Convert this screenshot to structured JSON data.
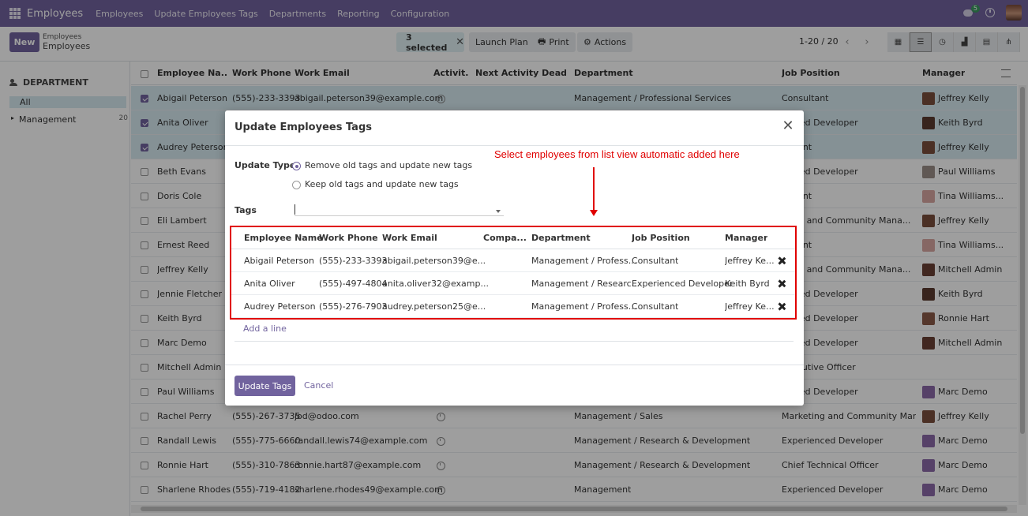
{
  "topbar": {
    "brand": "Employees",
    "menu": [
      "Employees",
      "Update Employees Tags",
      "Departments",
      "Reporting",
      "Configuration"
    ],
    "chat_count": "5"
  },
  "control_panel": {
    "new_label": "New",
    "breadcrumb_parent": "Employees",
    "breadcrumb_current": "Employees",
    "selected_label": "3 selected",
    "launch_plan_label": "Launch Plan",
    "print_label": "Print",
    "actions_label": "Actions",
    "pager": "1-20 / 20"
  },
  "sidebar": {
    "title": "DEPARTMENT",
    "all_label": "All",
    "items": [
      {
        "label": "Management",
        "count": "20"
      }
    ]
  },
  "list": {
    "headers": [
      "Employee Na...",
      "Work Phone",
      "Work Email",
      "Activit...",
      "Next Activity Deadli...",
      "Department",
      "Job Position",
      "Manager"
    ],
    "rows": [
      {
        "name": "Abigail Peterson",
        "phone": "(555)-233-3393",
        "email": "abigail.peterson39@example.com",
        "activity": true,
        "department": "Management / Professional Services",
        "job": "Consultant",
        "manager": "Jeffrey Kelly",
        "selected": true,
        "av": "#7a4e3c"
      },
      {
        "name": "Anita Oliver",
        "phone": "",
        "email": "",
        "activity": false,
        "department": "",
        "job": "ienced Developer",
        "manager": "Keith Byrd",
        "selected": true,
        "av": "#5b3b30"
      },
      {
        "name": "Audrey Peterson",
        "phone": "",
        "email": "",
        "activity": false,
        "department": "",
        "job": "sultant",
        "manager": "Jeffrey Kelly",
        "selected": true,
        "av": "#7a4e3c"
      },
      {
        "name": "Beth Evans",
        "phone": "",
        "email": "",
        "activity": false,
        "department": "",
        "job": "ienced Developer",
        "manager": "Paul Williams",
        "selected": false,
        "av": "#9b8f88"
      },
      {
        "name": "Doris Cole",
        "phone": "",
        "email": "",
        "activity": false,
        "department": "",
        "job": "sultant",
        "manager": "Tina Williams...",
        "selected": false,
        "av": "#d8a7a2"
      },
      {
        "name": "Eli Lambert",
        "phone": "",
        "email": "",
        "activity": false,
        "department": "",
        "job": "eting and Community Mana...",
        "manager": "Jeffrey Kelly",
        "selected": false,
        "av": "#7a4e3c"
      },
      {
        "name": "Ernest Reed",
        "phone": "",
        "email": "",
        "activity": false,
        "department": "",
        "job": "sultant",
        "manager": "Tina Williams...",
        "selected": false,
        "av": "#d8a7a2"
      },
      {
        "name": "Jeffrey Kelly",
        "phone": "",
        "email": "",
        "activity": false,
        "department": "",
        "job": "eting and Community Mana...",
        "manager": "Mitchell Admin",
        "selected": false,
        "av": "#6a3f35"
      },
      {
        "name": "Jennie Fletcher",
        "phone": "",
        "email": "",
        "activity": false,
        "department": "",
        "job": "ienced Developer",
        "manager": "Keith Byrd",
        "selected": false,
        "av": "#5b3b30"
      },
      {
        "name": "Keith Byrd",
        "phone": "",
        "email": "",
        "activity": false,
        "department": "",
        "job": "ienced Developer",
        "manager": "Ronnie Hart",
        "selected": false,
        "av": "#8a5a47"
      },
      {
        "name": "Marc Demo",
        "phone": "",
        "email": "",
        "activity": false,
        "department": "",
        "job": "ienced Developer",
        "manager": "Mitchell Admin",
        "selected": false,
        "av": "#6a3f35"
      },
      {
        "name": "Mitchell Admin",
        "phone": "",
        "email": "",
        "activity": false,
        "department": "",
        "job": "Executive Officer",
        "manager": "",
        "selected": false,
        "av": ""
      },
      {
        "name": "Paul Williams",
        "phone": "",
        "email": "",
        "activity": false,
        "department": "",
        "job": "ienced Developer",
        "manager": "Marc Demo",
        "selected": false,
        "av": "#8b6aa8"
      },
      {
        "name": "Rachel Perry",
        "phone": "(555)-267-3735",
        "email": "jod@odoo.com",
        "activity": true,
        "department": "Management / Sales",
        "job": "Marketing and Community Mana...",
        "manager": "Jeffrey Kelly",
        "selected": false,
        "av": "#7a4e3c"
      },
      {
        "name": "Randall Lewis",
        "phone": "(555)-775-6660",
        "email": "randall.lewis74@example.com",
        "activity": true,
        "department": "Management / Research & Development",
        "job": "Experienced Developer",
        "manager": "Marc Demo",
        "selected": false,
        "av": "#8b6aa8"
      },
      {
        "name": "Ronnie Hart",
        "phone": "(555)-310-7863",
        "email": "ronnie.hart87@example.com",
        "activity": true,
        "department": "Management / Research & Development",
        "job": "Chief Technical Officer",
        "manager": "Marc Demo",
        "selected": false,
        "av": "#8b6aa8"
      },
      {
        "name": "Sharlene Rhodes",
        "phone": "(555)-719-4182",
        "email": "sharlene.rhodes49@example.com",
        "activity": true,
        "department": "Management",
        "job": "Experienced Developer",
        "manager": "Marc Demo",
        "selected": false,
        "av": "#8b6aa8"
      }
    ]
  },
  "modal": {
    "title": "Update Employees Tags",
    "note": "Select employees from list view automatic added here",
    "update_type_label": "Update Type",
    "option_remove": "Remove old tags and update new tags",
    "option_keep": "Keep old tags and update new tags",
    "tags_label": "Tags",
    "sub_headers": [
      "Employee Name",
      "Work Phone",
      "Work Email",
      "Compa...",
      "Department",
      "Job Position",
      "Manager"
    ],
    "sub_rows": [
      {
        "name": "Abigail Peterson",
        "phone": "(555)-233-3393",
        "email": "abigail.peterson39@e...",
        "company": "",
        "department": "Management / Profess...",
        "job": "Consultant",
        "manager": "Jeffrey Ke..."
      },
      {
        "name": "Anita Oliver",
        "phone": "(555)-497-4804",
        "email": "anita.oliver32@examp...",
        "company": "",
        "department": "Management / Researc...",
        "job": "Experienced Developer",
        "manager": "Keith Byrd"
      },
      {
        "name": "Audrey Peterson",
        "phone": "(555)-276-7903",
        "email": "audrey.peterson25@e...",
        "company": "",
        "department": "Management / Profess...",
        "job": "Consultant",
        "manager": "Jeffrey Ke..."
      }
    ],
    "add_line_label": "Add a line",
    "update_button": "Update Tags",
    "cancel_button": "Cancel"
  },
  "colors": {
    "brand": "#71639e",
    "annotation": "#e00000",
    "selected_row": "#d7eaf1"
  }
}
